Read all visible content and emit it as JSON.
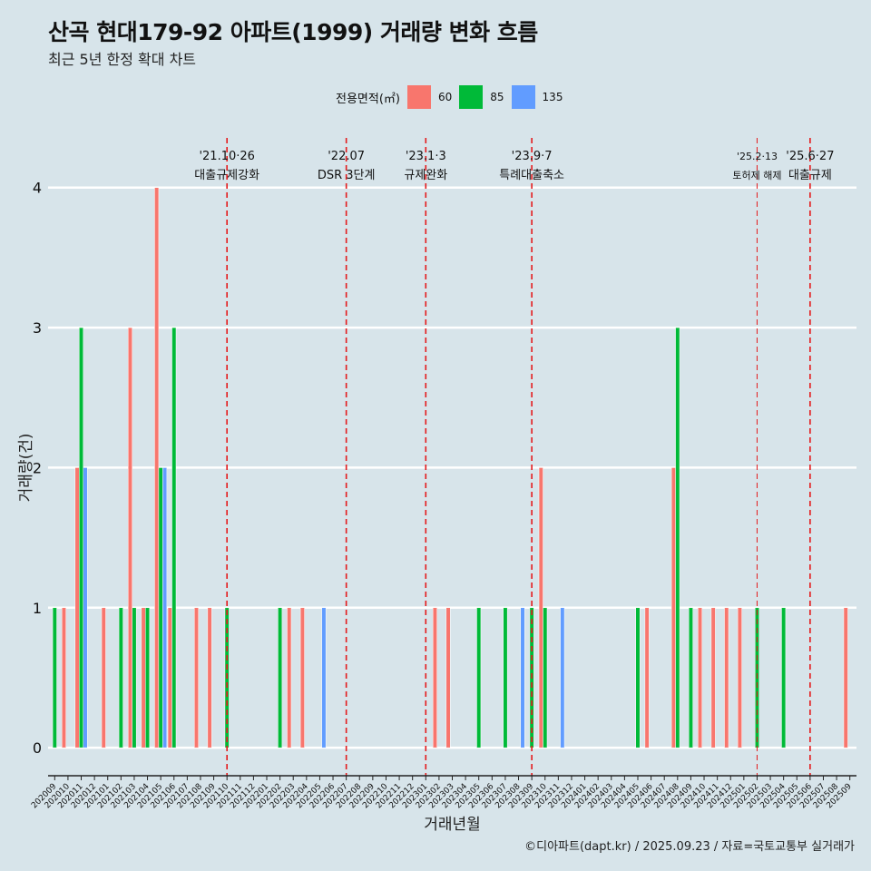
{
  "title": "산곡 현대179-92 아파트(1999) 거래량 변화 흐름",
  "subtitle": "최근 5년 한정 확대 차트",
  "caption": "©디아파트(dapt.kr) / 2025.09.23 / 자료=국토교통부 실거래가",
  "legend": {
    "title": "전용면적(㎡)",
    "items": [
      {
        "label": "60",
        "color": "#f8766d"
      },
      {
        "label": "85",
        "color": "#00ba38"
      },
      {
        "label": "135",
        "color": "#619cff"
      }
    ]
  },
  "chart_data": {
    "type": "bar",
    "title": "산곡 현대179-92 아파트(1999) 거래량 변화 흐름",
    "xlabel": "거래년월",
    "ylabel": "거래량(건)",
    "ylim": [
      -0.2,
      4.4
    ],
    "yticks": [
      0,
      1,
      2,
      3,
      4
    ],
    "categories": [
      "202009",
      "202010",
      "202011",
      "202012",
      "202101",
      "202102",
      "202103",
      "202104",
      "202105",
      "202106",
      "202107",
      "202108",
      "202109",
      "202110",
      "202111",
      "202112",
      "202201",
      "202202",
      "202203",
      "202204",
      "202205",
      "202206",
      "202207",
      "202208",
      "202209",
      "202210",
      "202211",
      "202212",
      "202301",
      "202302",
      "202303",
      "202304",
      "202305",
      "202306",
      "202307",
      "202308",
      "202309",
      "202310",
      "202311",
      "202312",
      "202401",
      "202402",
      "202403",
      "202404",
      "202405",
      "202406",
      "202407",
      "202408",
      "202409",
      "202410",
      "202411",
      "202412",
      "202501",
      "202502",
      "202503",
      "202504",
      "202505",
      "202506",
      "202507",
      "202508",
      "202509"
    ],
    "series": [
      {
        "name": "60",
        "color": "#f8766d",
        "values": [
          0,
          1,
          2,
          0,
          1,
          0,
          3,
          1,
          4,
          1,
          0,
          1,
          1,
          0,
          0,
          0,
          0,
          0,
          1,
          1,
          0,
          0,
          0,
          0,
          0,
          0,
          0,
          0,
          0,
          1,
          1,
          0,
          0,
          0,
          0,
          0,
          0,
          2,
          0,
          0,
          0,
          0,
          0,
          0,
          0,
          1,
          0,
          2,
          0,
          1,
          1,
          1,
          1,
          0,
          0,
          0,
          0,
          0,
          0,
          0,
          1
        ]
      },
      {
        "name": "85",
        "color": "#00ba38",
        "values": [
          1,
          0,
          3,
          0,
          0,
          1,
          1,
          1,
          2,
          3,
          0,
          0,
          0,
          1,
          0,
          0,
          0,
          1,
          0,
          0,
          0,
          0,
          0,
          0,
          0,
          0,
          0,
          0,
          0,
          0,
          0,
          0,
          1,
          0,
          1,
          0,
          1,
          1,
          0,
          0,
          0,
          0,
          0,
          0,
          1,
          0,
          0,
          3,
          1,
          0,
          0,
          0,
          0,
          1,
          0,
          1,
          0,
          0,
          0,
          0,
          0
        ]
      },
      {
        "name": "135",
        "color": "#619cff",
        "values": [
          0,
          0,
          2,
          0,
          0,
          0,
          0,
          0,
          2,
          0,
          0,
          0,
          0,
          0,
          0,
          0,
          0,
          0,
          0,
          0,
          1,
          0,
          0,
          0,
          0,
          0,
          0,
          0,
          0,
          0,
          0,
          0,
          0,
          0,
          0,
          1,
          0,
          0,
          1,
          0,
          0,
          0,
          0,
          0,
          0,
          0,
          0,
          0,
          0,
          0,
          0,
          0,
          0,
          0,
          0,
          0,
          0,
          0,
          0,
          0,
          0
        ]
      }
    ],
    "annotations": [
      {
        "month": "202110",
        "date": "'21.10·26",
        "label": "대출규제강화"
      },
      {
        "month": "202207",
        "date": "'22.07",
        "label": "DSR 3단계"
      },
      {
        "month": "202301",
        "date": "'23.1·3",
        "label": "규제완화"
      },
      {
        "month": "202309",
        "date": "'23.9·7",
        "label": "특례대출축소"
      },
      {
        "month": "202502",
        "date": "'25.2·13",
        "label": "토허제 해제"
      },
      {
        "month": "202506",
        "date": "'25.6·27",
        "label": "대출규제"
      }
    ]
  }
}
